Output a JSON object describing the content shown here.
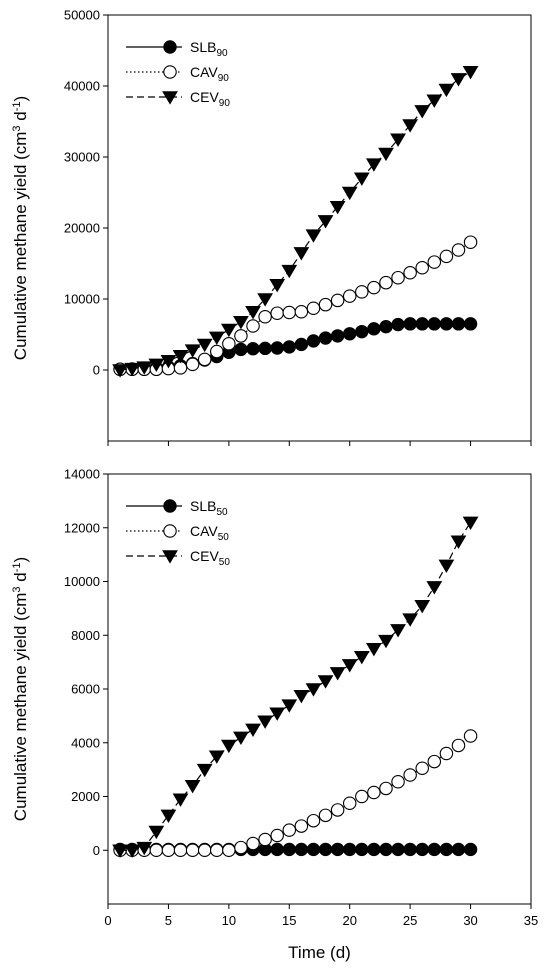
{
  "chart_data": [
    {
      "type": "line",
      "panel": "top",
      "ylabel_main": "Cumulative methane yield (cm",
      "ylabel_sup1": "3",
      "ylabel_mid": " d",
      "ylabel_sup2": "-1",
      "ylabel_end": ")",
      "xlim": [
        0,
        35
      ],
      "ylim": [
        -10000,
        50000
      ],
      "yticks": [
        0,
        10000,
        20000,
        30000,
        40000,
        50000
      ],
      "legend_position": "top-left",
      "series": [
        {
          "name": "SLB",
          "sub": "90",
          "marker": "filled-circle",
          "line": "solid",
          "x": [
            1,
            2,
            3,
            4,
            5,
            6,
            7,
            8,
            9,
            10,
            11,
            12,
            13,
            14,
            15,
            16,
            17,
            18,
            19,
            20,
            21,
            22,
            23,
            24,
            25,
            26,
            27,
            28,
            29,
            30
          ],
          "y": [
            100,
            150,
            200,
            300,
            400,
            600,
            900,
            1400,
            1900,
            2500,
            2900,
            3000,
            3050,
            3100,
            3250,
            3600,
            4100,
            4500,
            4800,
            5100,
            5400,
            5800,
            6100,
            6400,
            6500,
            6500,
            6500,
            6500,
            6500,
            6500
          ]
        },
        {
          "name": "CAV",
          "sub": "90",
          "marker": "open-circle",
          "line": "dotted",
          "x": [
            1,
            2,
            3,
            4,
            5,
            6,
            7,
            8,
            9,
            10,
            11,
            12,
            13,
            14,
            15,
            16,
            17,
            18,
            19,
            20,
            21,
            22,
            23,
            24,
            25,
            26,
            27,
            28,
            29,
            30
          ],
          "y": [
            100,
            100,
            100,
            100,
            200,
            300,
            800,
            1500,
            2600,
            3700,
            4800,
            6200,
            7500,
            8000,
            8100,
            8200,
            8700,
            9200,
            9800,
            10400,
            11000,
            11600,
            12300,
            13000,
            13700,
            14400,
            15200,
            16000,
            16900,
            18000
          ]
        },
        {
          "name": "CEV",
          "sub": "90",
          "marker": "filled-triangle-down",
          "line": "dashed",
          "x": [
            1,
            2,
            3,
            4,
            5,
            6,
            7,
            8,
            9,
            10,
            11,
            12,
            13,
            14,
            15,
            16,
            17,
            18,
            19,
            20,
            21,
            22,
            23,
            24,
            25,
            26,
            27,
            28,
            29,
            30
          ],
          "y": [
            0,
            200,
            400,
            800,
            1300,
            2000,
            2800,
            3600,
            4600,
            5700,
            6800,
            8200,
            10000,
            12000,
            14000,
            16500,
            19000,
            21000,
            23000,
            25000,
            27000,
            29000,
            30500,
            32500,
            34500,
            36500,
            38000,
            39500,
            41000,
            42000
          ]
        }
      ]
    },
    {
      "type": "line",
      "panel": "bottom",
      "ylabel_main": "Cumulative methane yield (cm",
      "ylabel_sup1": "3",
      "ylabel_mid": " d",
      "ylabel_sup2": "-1",
      "ylabel_end": ")",
      "xlabel": "Time (d)",
      "xlim": [
        0,
        35
      ],
      "xticks": [
        0,
        5,
        10,
        15,
        20,
        25,
        30,
        35
      ],
      "ylim": [
        -2000,
        14000
      ],
      "yticks": [
        0,
        2000,
        4000,
        6000,
        8000,
        10000,
        12000,
        14000
      ],
      "legend_position": "top-left",
      "series": [
        {
          "name": "SLB",
          "sub": "50",
          "marker": "filled-circle",
          "line": "solid",
          "x": [
            1,
            2,
            3,
            4,
            5,
            6,
            7,
            8,
            9,
            10,
            11,
            12,
            13,
            14,
            15,
            16,
            17,
            18,
            19,
            20,
            21,
            22,
            23,
            24,
            25,
            26,
            27,
            28,
            29,
            30
          ],
          "y": [
            30,
            30,
            30,
            30,
            30,
            30,
            30,
            30,
            30,
            30,
            30,
            30,
            30,
            30,
            30,
            30,
            30,
            30,
            30,
            30,
            30,
            30,
            30,
            30,
            30,
            30,
            30,
            30,
            30,
            30
          ]
        },
        {
          "name": "CAV",
          "sub": "50",
          "marker": "open-circle",
          "line": "dotted",
          "x": [
            1,
            2,
            3,
            4,
            5,
            6,
            7,
            8,
            9,
            10,
            11,
            12,
            13,
            14,
            15,
            16,
            17,
            18,
            19,
            20,
            21,
            22,
            23,
            24,
            25,
            26,
            27,
            28,
            29,
            30
          ],
          "y": [
            0,
            0,
            0,
            0,
            0,
            0,
            0,
            0,
            0,
            0,
            100,
            250,
            400,
            550,
            750,
            900,
            1100,
            1300,
            1500,
            1750,
            2000,
            2150,
            2300,
            2550,
            2800,
            3050,
            3300,
            3600,
            3900,
            4250
          ]
        },
        {
          "name": "CEV",
          "sub": "50",
          "marker": "filled-triangle-down",
          "line": "dashed",
          "x": [
            1,
            2,
            3,
            4,
            5,
            6,
            7,
            8,
            9,
            10,
            11,
            12,
            13,
            14,
            15,
            16,
            17,
            18,
            19,
            20,
            21,
            22,
            23,
            24,
            25,
            26,
            27,
            28,
            29,
            30
          ],
          "y": [
            0,
            0,
            100,
            700,
            1300,
            1900,
            2400,
            3000,
            3500,
            3900,
            4200,
            4500,
            4800,
            5100,
            5400,
            5750,
            6000,
            6300,
            6600,
            6900,
            7200,
            7500,
            7800,
            8200,
            8600,
            9100,
            9800,
            10600,
            11500,
            12200
          ]
        }
      ]
    }
  ]
}
